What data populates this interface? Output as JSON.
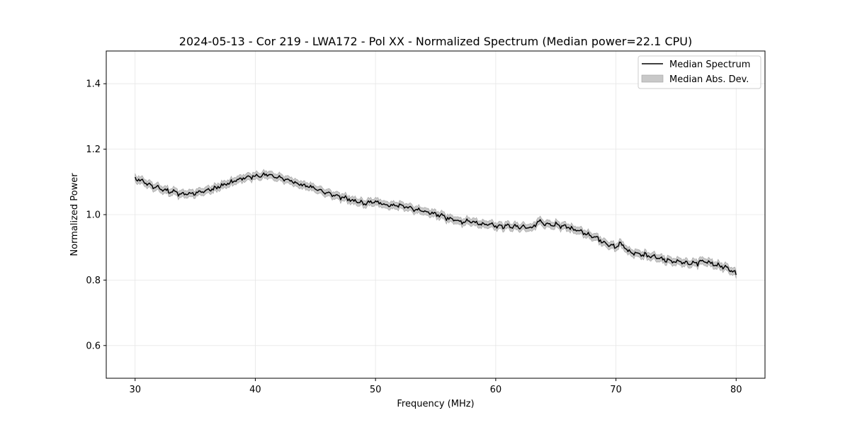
{
  "chart_data": {
    "type": "line",
    "title": "2024-05-13 - Cor 219 - LWA172 - Pol XX - Normalized Spectrum (Median power=22.1 CPU)",
    "xlabel": "Frequency (MHz)",
    "ylabel": "Normalized Power",
    "xlim": [
      27.6,
      82.4
    ],
    "ylim": [
      0.5,
      1.5
    ],
    "xticks": [
      30,
      40,
      50,
      60,
      70,
      80
    ],
    "yticks": [
      0.6,
      0.8,
      1.0,
      1.2,
      1.4
    ],
    "xtick_labels": [
      "30",
      "40",
      "50",
      "60",
      "70",
      "80"
    ],
    "ytick_labels": [
      "0.6",
      "0.8",
      "1.0",
      "1.2",
      "1.4"
    ],
    "grid": true,
    "legend_position": "top-right",
    "colors": {
      "line": "#000000",
      "band": "#c8c8c8",
      "band_edge": "#a0a0a0",
      "grid": "#e6e6e6"
    },
    "series": [
      {
        "name": "Median Spectrum",
        "kind": "line",
        "x": [
          30,
          31,
          32,
          33,
          34,
          35,
          36,
          37,
          38,
          39,
          40,
          41,
          42,
          43,
          44,
          45,
          46,
          47,
          48,
          49,
          50,
          51,
          52,
          53,
          54,
          55,
          56,
          57,
          58,
          59,
          60,
          61,
          62,
          63,
          63.6,
          64,
          65,
          66,
          67,
          68,
          69,
          70,
          70.3,
          71,
          72,
          73,
          74,
          75,
          76,
          76.8,
          77,
          78,
          79,
          80
        ],
        "values": [
          1.11,
          1.095,
          1.08,
          1.07,
          1.063,
          1.065,
          1.075,
          1.085,
          1.1,
          1.112,
          1.118,
          1.122,
          1.112,
          1.102,
          1.09,
          1.08,
          1.065,
          1.055,
          1.045,
          1.035,
          1.04,
          1.03,
          1.028,
          1.02,
          1.01,
          1.0,
          0.99,
          0.98,
          0.978,
          0.972,
          0.965,
          0.965,
          0.963,
          0.96,
          0.98,
          0.97,
          0.968,
          0.962,
          0.95,
          0.935,
          0.915,
          0.9,
          0.915,
          0.89,
          0.88,
          0.872,
          0.862,
          0.856,
          0.852,
          0.85,
          0.86,
          0.852,
          0.84,
          0.82
        ]
      },
      {
        "name": "Median Abs. Dev.",
        "kind": "band",
        "half_width": 0.011
      }
    ]
  }
}
